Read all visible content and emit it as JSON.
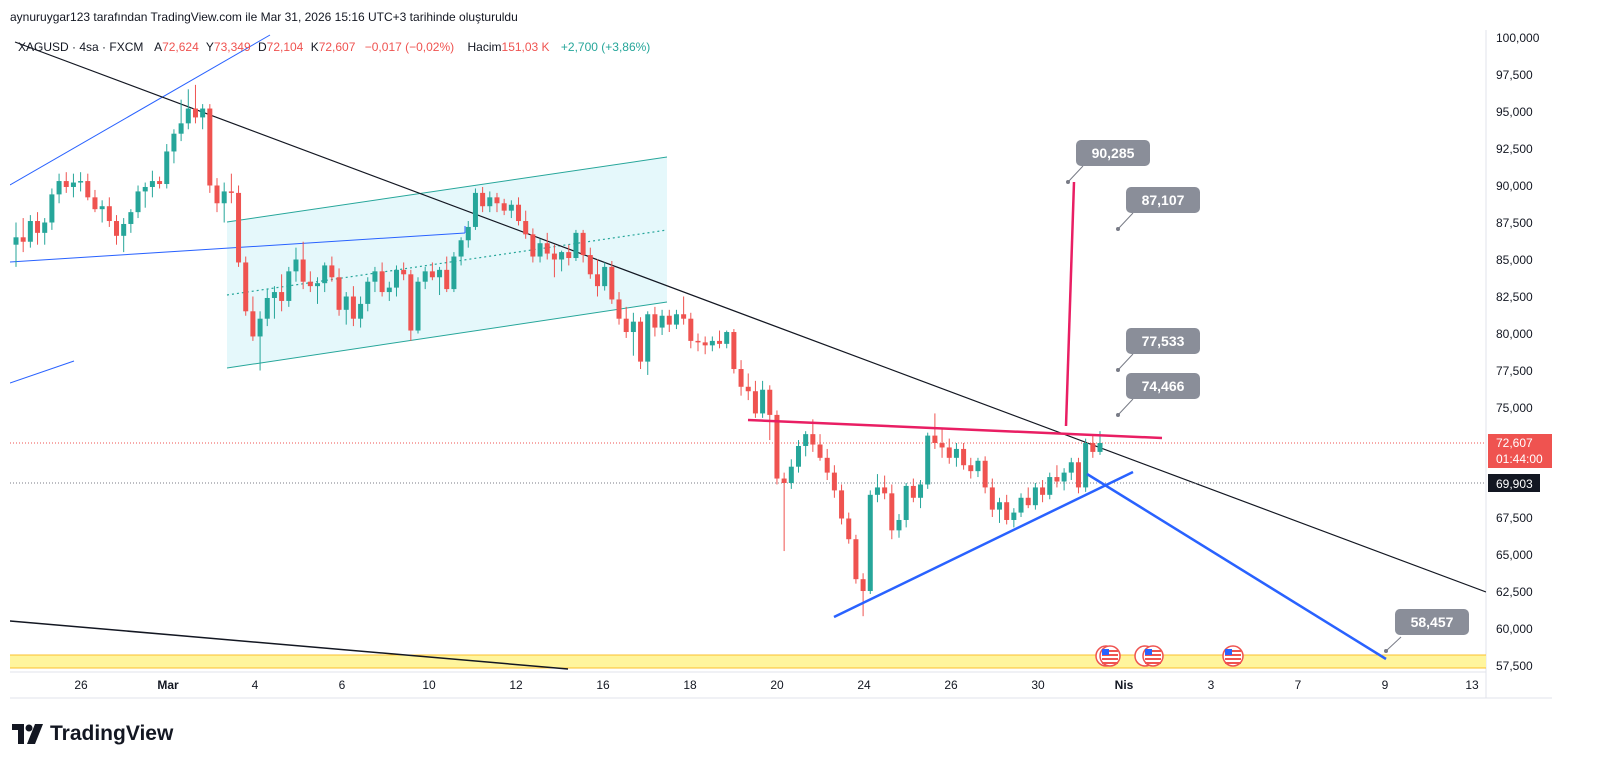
{
  "header": {
    "text": "aynuruygar123 tarafından TradingView.com ile Mar 31, 2026 15:16 UTC+3 tarihinde oluşturuldu"
  },
  "symbol_line": {
    "symbol": "XAGUSD",
    "sep1": " · ",
    "timeframe": "4sa",
    "sep2": " · ",
    "exchange": "FXCM",
    "open_label": "A",
    "open": "72,624",
    "high_label": "Y",
    "high": "73,349",
    "low_label": "D",
    "low": "72,104",
    "close_label": "K",
    "close": "72,607",
    "change": "−0,017 (−0,02%)",
    "volume_label": "Hacim",
    "volume": "151,03 K",
    "volume_change": "+2,700 (+3,86%)"
  },
  "price_badges": {
    "last_price": "72,607",
    "countdown": "01:44:00",
    "level": "69,903"
  },
  "callouts": [
    "90,285",
    "87,107",
    "77,533",
    "74,466",
    "58,457"
  ],
  "brand": "TradingView",
  "colors": {
    "up": "#26a69a",
    "down": "#ef5350",
    "pink": "#e91e63",
    "blue": "#2962ff",
    "trend": "#131722",
    "channel_fill": "#e0f7fa",
    "channel_line": "#26a69a",
    "yellow_zone": "#fff59d"
  },
  "chart_data": {
    "type": "candlestick",
    "yaxis": {
      "ticks": [
        "100,000",
        "97,500",
        "95,000",
        "92,500",
        "90,000",
        "87,500",
        "85,000",
        "82,500",
        "80,000",
        "77,500",
        "75,000",
        "67,500",
        "65,000",
        "62,500",
        "60,000",
        "57,500"
      ],
      "tick_values": [
        100,
        97.5,
        95,
        92.5,
        90,
        87.5,
        85,
        82.5,
        80,
        77.5,
        75,
        67.5,
        65,
        62.5,
        60,
        57.5
      ],
      "range": [
        56.7,
        100.5
      ]
    },
    "xaxis": {
      "ticks": [
        "26",
        "Mar",
        "4",
        "6",
        "10",
        "12",
        "16",
        "18",
        "20",
        "24",
        "26",
        "30",
        "Nis",
        "3",
        "7",
        "9",
        "13"
      ]
    },
    "annotations": {
      "callout_values": [
        90.285,
        87.107,
        77.533,
        74.466,
        58.457
      ],
      "last_price": 72.607,
      "level": 69.903
    },
    "candles": [
      [
        86.0,
        87.5,
        84.5,
        86.5
      ],
      [
        86.5,
        87.8,
        85.5,
        86.2
      ],
      [
        86.2,
        88.0,
        85.8,
        87.6
      ],
      [
        87.6,
        88.2,
        86.0,
        86.8
      ],
      [
        86.8,
        87.8,
        86.0,
        87.5
      ],
      [
        87.5,
        89.8,
        87.0,
        89.4
      ],
      [
        89.4,
        90.8,
        88.8,
        90.3
      ],
      [
        90.3,
        90.9,
        89.5,
        89.9
      ],
      [
        89.9,
        90.8,
        89.2,
        90.2
      ],
      [
        90.2,
        90.9,
        89.6,
        90.3
      ],
      [
        90.3,
        90.8,
        89.0,
        89.2
      ],
      [
        89.2,
        89.7,
        88.2,
        88.4
      ],
      [
        88.4,
        89.0,
        87.5,
        88.6
      ],
      [
        88.6,
        89.2,
        87.2,
        87.6
      ],
      [
        87.6,
        88.0,
        86.0,
        86.6
      ],
      [
        86.6,
        87.8,
        85.5,
        87.4
      ],
      [
        87.4,
        88.4,
        86.8,
        88.2
      ],
      [
        88.2,
        90.0,
        87.8,
        89.6
      ],
      [
        89.6,
        90.2,
        88.5,
        89.9
      ],
      [
        89.9,
        91.0,
        89.2,
        90.3
      ],
      [
        90.3,
        90.6,
        89.8,
        90.1
      ],
      [
        90.1,
        92.8,
        89.8,
        92.3
      ],
      [
        92.3,
        93.8,
        91.5,
        93.5
      ],
      [
        93.5,
        95.8,
        93.0,
        94.2
      ],
      [
        94.2,
        96.5,
        93.8,
        95.2
      ],
      [
        95.2,
        96.8,
        94.2,
        94.6
      ],
      [
        94.6,
        95.5,
        93.8,
        95.2
      ],
      [
        95.2,
        95.5,
        89.5,
        90.0
      ],
      [
        90.0,
        90.5,
        88.2,
        88.8
      ],
      [
        88.8,
        90.2,
        87.5,
        89.6
      ],
      [
        89.6,
        90.8,
        88.8,
        89.5
      ],
      [
        89.5,
        90.0,
        84.5,
        84.8
      ],
      [
        84.8,
        85.2,
        81.2,
        81.5
      ],
      [
        81.5,
        82.5,
        79.5,
        79.8
      ],
      [
        79.8,
        81.5,
        77.5,
        81.0
      ],
      [
        81.0,
        83.0,
        80.5,
        82.4
      ],
      [
        82.4,
        83.2,
        81.0,
        82.8
      ],
      [
        82.8,
        84.0,
        81.5,
        82.2
      ],
      [
        82.2,
        84.5,
        81.8,
        84.2
      ],
      [
        84.2,
        85.8,
        83.5,
        85.0
      ],
      [
        85.0,
        86.2,
        83.0,
        83.5
      ],
      [
        83.5,
        84.2,
        82.8,
        83.2
      ],
      [
        83.2,
        83.8,
        82.0,
        83.4
      ],
      [
        83.4,
        84.8,
        82.8,
        84.6
      ],
      [
        84.6,
        85.2,
        83.5,
        83.8
      ],
      [
        83.8,
        84.4,
        81.2,
        81.6
      ],
      [
        81.6,
        82.8,
        80.6,
        82.5
      ],
      [
        82.5,
        83.2,
        80.5,
        81.0
      ],
      [
        81.0,
        82.5,
        80.4,
        82.0
      ],
      [
        82.0,
        83.8,
        81.5,
        83.5
      ],
      [
        83.5,
        84.5,
        82.8,
        84.2
      ],
      [
        84.2,
        84.8,
        82.5,
        82.8
      ],
      [
        82.8,
        83.5,
        82.2,
        83.1
      ],
      [
        83.1,
        84.6,
        82.5,
        84.3
      ],
      [
        84.3,
        84.8,
        83.6,
        84.0
      ],
      [
        84.0,
        84.3,
        79.5,
        80.2
      ],
      [
        80.2,
        83.8,
        80.0,
        83.5
      ],
      [
        83.5,
        84.5,
        83.0,
        84.2
      ],
      [
        84.2,
        84.8,
        83.6,
        83.8
      ],
      [
        83.8,
        84.5,
        82.6,
        84.3
      ],
      [
        84.3,
        85.2,
        82.8,
        83.0
      ],
      [
        83.0,
        85.5,
        82.8,
        85.2
      ],
      [
        85.2,
        86.5,
        84.6,
        86.3
      ],
      [
        86.3,
        87.6,
        85.8,
        87.2
      ],
      [
        87.2,
        89.8,
        87.0,
        89.5
      ],
      [
        89.5,
        89.9,
        88.2,
        88.6
      ],
      [
        88.6,
        89.6,
        88.2,
        89.2
      ],
      [
        89.2,
        89.5,
        88.2,
        88.8
      ],
      [
        88.8,
        89.1,
        88.0,
        88.3
      ],
      [
        88.3,
        89.0,
        87.8,
        88.7
      ],
      [
        88.7,
        89.2,
        87.3,
        87.6
      ],
      [
        87.6,
        88.3,
        86.4,
        86.7
      ],
      [
        86.7,
        87.1,
        84.8,
        85.2
      ],
      [
        85.2,
        86.4,
        84.8,
        86.1
      ],
      [
        86.1,
        86.8,
        85.0,
        85.4
      ],
      [
        85.4,
        86.0,
        83.8,
        85.0
      ],
      [
        85.0,
        85.6,
        84.2,
        85.5
      ],
      [
        85.5,
        86.0,
        84.6,
        85.1
      ],
      [
        85.1,
        87.0,
        84.9,
        86.8
      ],
      [
        86.8,
        87.0,
        84.8,
        85.3
      ],
      [
        85.3,
        85.8,
        83.7,
        84.0
      ],
      [
        84.0,
        85.0,
        82.5,
        83.2
      ],
      [
        83.2,
        84.8,
        82.9,
        84.5
      ],
      [
        84.5,
        84.9,
        82.0,
        82.3
      ],
      [
        82.3,
        82.8,
        80.6,
        81.0
      ],
      [
        81.0,
        81.8,
        79.7,
        80.1
      ],
      [
        80.1,
        81.4,
        78.5,
        80.8
      ],
      [
        80.8,
        81.1,
        77.6,
        78.1
      ],
      [
        78.1,
        81.5,
        77.2,
        81.3
      ],
      [
        81.3,
        81.8,
        79.8,
        80.4
      ],
      [
        80.4,
        81.6,
        79.9,
        81.2
      ],
      [
        81.2,
        81.6,
        80.1,
        80.6
      ],
      [
        80.6,
        81.6,
        80.3,
        81.3
      ],
      [
        81.3,
        82.5,
        80.6,
        81.0
      ],
      [
        81.0,
        81.4,
        79.0,
        79.5
      ],
      [
        79.5,
        80.0,
        78.8,
        79.4
      ],
      [
        79.4,
        79.8,
        78.6,
        79.2
      ],
      [
        79.2,
        79.8,
        78.8,
        79.5
      ],
      [
        79.5,
        80.2,
        79.0,
        79.3
      ],
      [
        79.3,
        80.2,
        79.0,
        80.1
      ],
      [
        80.1,
        80.3,
        77.3,
        77.6
      ],
      [
        77.6,
        78.2,
        75.8,
        76.4
      ],
      [
        76.4,
        77.3,
        75.5,
        76.1
      ],
      [
        76.1,
        76.8,
        74.3,
        74.6
      ],
      [
        74.6,
        76.8,
        74.3,
        76.2
      ],
      [
        76.2,
        76.5,
        72.8,
        74.5
      ],
      [
        74.5,
        74.8,
        69.8,
        70.2
      ],
      [
        70.2,
        70.6,
        65.3,
        69.9
      ],
      [
        69.9,
        71.5,
        69.5,
        71.0
      ],
      [
        71.0,
        72.8,
        70.6,
        72.4
      ],
      [
        72.4,
        73.4,
        71.7,
        73.2
      ],
      [
        73.2,
        74.2,
        72.0,
        72.5
      ],
      [
        72.5,
        73.2,
        71.4,
        71.6
      ],
      [
        71.6,
        72.2,
        70.1,
        70.6
      ],
      [
        70.6,
        71.1,
        68.9,
        69.4
      ],
      [
        69.4,
        69.8,
        67.1,
        67.5
      ],
      [
        67.5,
        67.9,
        65.8,
        66.1
      ],
      [
        66.1,
        66.4,
        63.1,
        63.4
      ],
      [
        63.4,
        63.8,
        60.9,
        62.6
      ],
      [
        62.6,
        69.4,
        62.4,
        69.1
      ],
      [
        69.1,
        70.5,
        68.6,
        69.6
      ],
      [
        69.6,
        70.4,
        68.8,
        69.2
      ],
      [
        69.2,
        69.8,
        66.1,
        66.7
      ],
      [
        66.7,
        67.8,
        66.2,
        67.4
      ],
      [
        67.4,
        69.9,
        66.9,
        69.7
      ],
      [
        69.7,
        70.2,
        68.6,
        68.9
      ],
      [
        68.9,
        70.1,
        68.2,
        69.8
      ],
      [
        69.8,
        73.3,
        69.5,
        73.1
      ],
      [
        73.1,
        74.6,
        72.2,
        72.6
      ],
      [
        72.6,
        73.6,
        71.6,
        72.3
      ],
      [
        72.3,
        72.9,
        71.2,
        71.6
      ],
      [
        71.6,
        72.6,
        71.0,
        72.2
      ],
      [
        72.2,
        72.6,
        70.8,
        71.1
      ],
      [
        71.1,
        71.6,
        70.2,
        70.7
      ],
      [
        70.7,
        71.6,
        70.3,
        71.4
      ],
      [
        71.4,
        71.7,
        69.2,
        69.6
      ],
      [
        69.6,
        70.2,
        67.6,
        68.1
      ],
      [
        68.1,
        68.9,
        67.2,
        68.6
      ],
      [
        68.6,
        69.1,
        67.1,
        67.4
      ],
      [
        67.4,
        68.2,
        66.9,
        67.9
      ],
      [
        67.9,
        69.2,
        67.6,
        68.9
      ],
      [
        68.9,
        69.6,
        68.2,
        68.4
      ],
      [
        68.4,
        69.9,
        68.1,
        69.6
      ],
      [
        69.6,
        70.1,
        68.6,
        69.1
      ],
      [
        69.1,
        70.6,
        68.8,
        70.3
      ],
      [
        70.3,
        71.1,
        69.6,
        70.0
      ],
      [
        70.0,
        70.9,
        69.4,
        70.6
      ],
      [
        70.6,
        71.6,
        70.1,
        71.3
      ],
      [
        71.3,
        71.6,
        69.2,
        69.6
      ],
      [
        69.6,
        72.9,
        69.3,
        72.6
      ],
      [
        72.6,
        73.1,
        71.6,
        72.0
      ],
      [
        72.0,
        73.4,
        71.8,
        72.6
      ]
    ]
  }
}
